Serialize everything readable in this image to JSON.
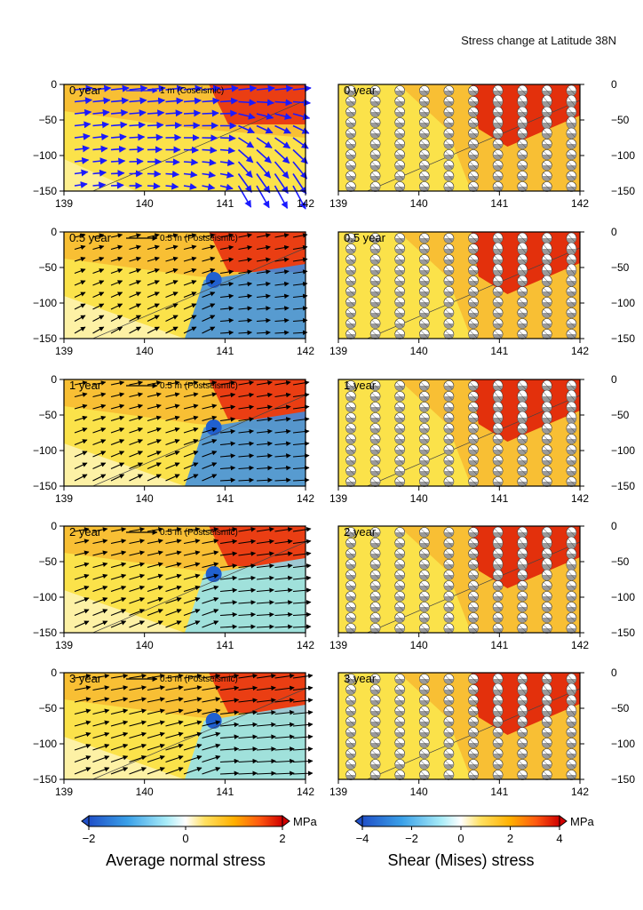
{
  "title": "Stress change at Latitude 38N",
  "colors": {
    "arrow_coseismic": "#1a1aff",
    "arrow_postseismic": "#000000",
    "stress_high": "#e00000",
    "stress_mid": "#ffd000",
    "stress_zero": "#ffffff",
    "stress_low": "#3070e0"
  },
  "panels": [
    {
      "time_label": "0 year",
      "scale_label": "1 m (Coseismic)"
    },
    {
      "time_label": "0.5 year",
      "scale_label": "0.5 m (Postseismic)"
    },
    {
      "time_label": "1 year",
      "scale_label": "0.5 m (Postseismic)"
    },
    {
      "time_label": "2 year",
      "scale_label": "0.5 m (Postseismic)"
    },
    {
      "time_label": "3 year",
      "scale_label": "0.5 m (Postseismic)"
    }
  ],
  "colorbars": [
    {
      "label": "Average normal stress",
      "unit": "MPa",
      "ticks": [
        "−2",
        "0",
        "2"
      ],
      "range": [
        -2,
        2
      ]
    },
    {
      "label": "Shear (Mises) stress",
      "unit": "MPa",
      "ticks": [
        "−4",
        "−2",
        "0",
        "2",
        "4"
      ],
      "range": [
        -4,
        4
      ]
    }
  ],
  "chart_data": [
    {
      "type": "heatmap",
      "variable": "Average normal stress",
      "unit": "MPa",
      "overlay": "displacement vectors",
      "panels": [
        "0 year",
        "0.5 year",
        "1 year",
        "2 year",
        "3 year"
      ],
      "x": {
        "ticks": [
          139,
          140,
          141,
          142
        ],
        "range": [
          139,
          142
        ]
      },
      "y": {
        "ticks": [
          0,
          -50,
          -100,
          -150
        ],
        "range": [
          -150,
          0
        ]
      },
      "color_range": [
        -2,
        2
      ]
    },
    {
      "type": "heatmap",
      "variable": "Shear (Mises) stress",
      "unit": "MPa",
      "overlay": "focal mechanism glyphs",
      "panels": [
        "0 year",
        "0.5 year",
        "1 year",
        "2 year",
        "3 year"
      ],
      "x": {
        "ticks": [
          139,
          140,
          141,
          142
        ],
        "range": [
          139,
          142
        ]
      },
      "y": {
        "ticks": [
          0,
          -50,
          -100,
          -150
        ],
        "range": [
          -150,
          0
        ]
      },
      "color_range": [
        -4,
        4
      ]
    }
  ]
}
